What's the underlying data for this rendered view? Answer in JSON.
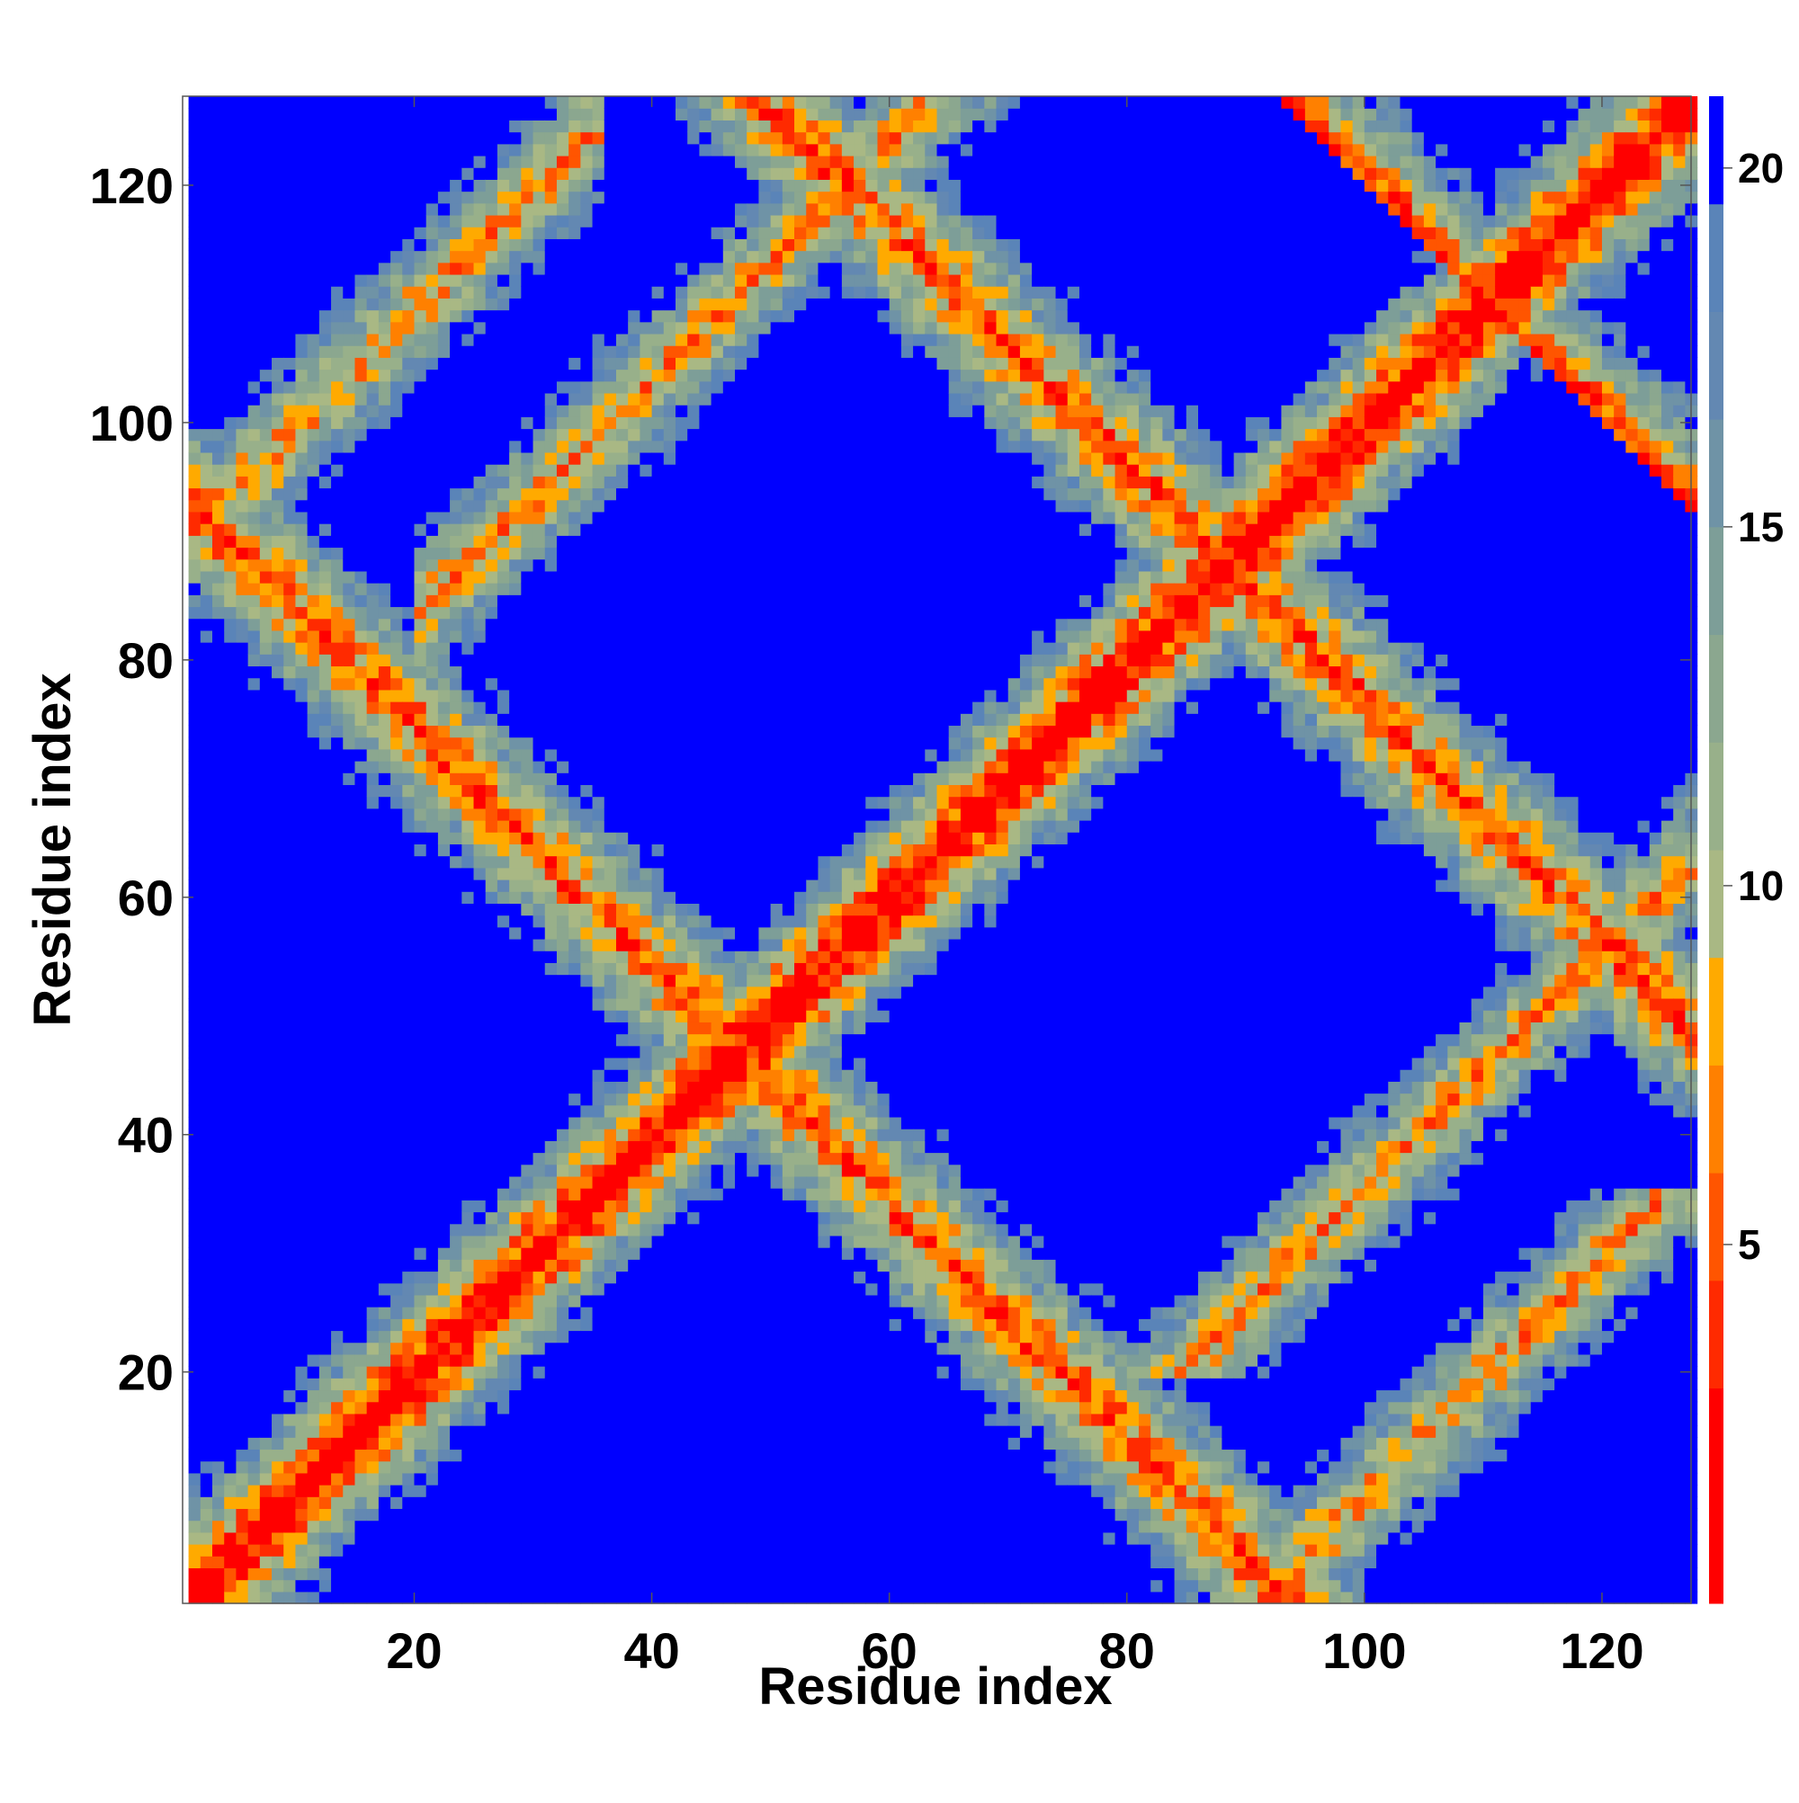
{
  "chart_data": {
    "type": "heatmap",
    "title": "",
    "xlabel": "Residue index",
    "ylabel": "Residue index",
    "n_residues": 127,
    "xlim": [
      1,
      127
    ],
    "ylim": [
      1,
      127
    ],
    "x_ticks": [
      20,
      40,
      60,
      80,
      100,
      120
    ],
    "y_ticks": [
      20,
      40,
      60,
      80,
      100,
      120
    ],
    "colorbar": {
      "ticks": [
        5,
        10,
        15,
        20
      ],
      "range": [
        0,
        21
      ],
      "bands": [
        {
          "max": 3,
          "color": "#ff0000"
        },
        {
          "max": 4.5,
          "color": "#ff2a00"
        },
        {
          "max": 6,
          "color": "#ff5500"
        },
        {
          "max": 7.5,
          "color": "#ff8000"
        },
        {
          "max": 9,
          "color": "#ffaa00"
        },
        {
          "max": 10.5,
          "color": "#a9b884"
        },
        {
          "max": 12,
          "color": "#98b08a"
        },
        {
          "max": 13.5,
          "color": "#8ba78f"
        },
        {
          "max": 15,
          "color": "#7d9e98"
        },
        {
          "max": 16.5,
          "color": "#6f93a6"
        },
        {
          "max": 18,
          "color": "#6388b2"
        },
        {
          "max": 19.5,
          "color": "#5a84b8"
        },
        {
          "max": 21,
          "color": "#0000ff"
        }
      ]
    },
    "structure": {
      "diagonal": {
        "min": 1,
        "max": 127
      },
      "antiparallel_bands": [
        {
          "i_min": 1,
          "i_max": 127,
          "sum": 94
        },
        {
          "i_min": 50,
          "i_max": 128,
          "sum": 176
        },
        {
          "i_min": 110,
          "i_max": 128,
          "sum": 220
        }
      ],
      "parallel_bands": [
        {
          "i_min": 20,
          "i_max": 110,
          "offset": 64
        },
        {
          "i_min": 1,
          "i_max": 35,
          "offset": 90
        }
      ]
    }
  }
}
